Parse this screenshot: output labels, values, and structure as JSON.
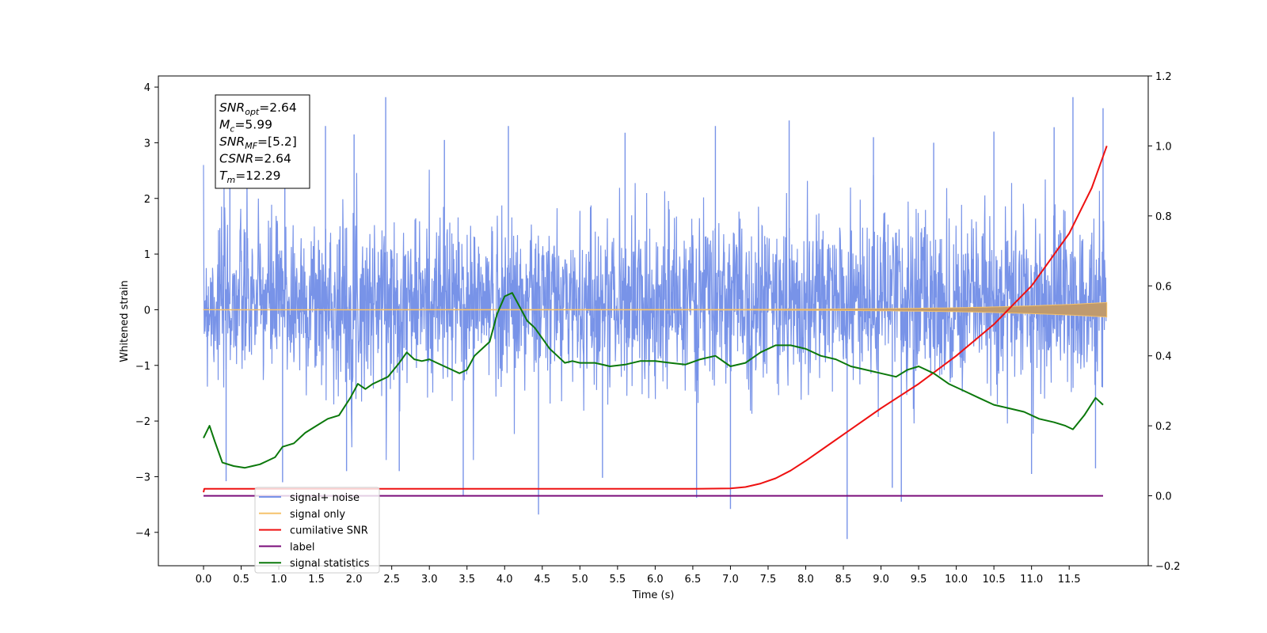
{
  "chart_data": {
    "type": "line",
    "title": "",
    "xlabel": "Time (s)",
    "ylabel": "Whitened strain",
    "x_ticks": [
      "0.0",
      "0.5",
      "1.0",
      "1.5",
      "2.0",
      "2.5",
      "3.0",
      "3.5",
      "4.0",
      "4.5",
      "5.0",
      "5.5",
      "6.0",
      "6.5",
      "7.0",
      "7.5",
      "8.0",
      "8.5",
      "9.0",
      "9.5",
      "10.0",
      "10.5",
      "11.0",
      "11.5"
    ],
    "xlim": [
      -0.6,
      12.55
    ],
    "ylim": [
      -4.6,
      4.2
    ],
    "y_ticks": [
      "4",
      "3",
      "2",
      "1",
      "0",
      "−1",
      "−2",
      "−3",
      "−4"
    ],
    "y2lim": [
      -0.2,
      1.2
    ],
    "y2_ticks": [
      "1.2",
      "1.0",
      "0.8",
      "0.6",
      "0.4",
      "0.2",
      "0.0",
      "−0.2"
    ],
    "grid": false,
    "legend_position": "lower-left",
    "colors": {
      "noise": "#7893e8",
      "signal": "#f5c26b",
      "signal_envelope": "#bf9a6e",
      "csnr": "#ee1111",
      "label": "#7b0f7b",
      "stats": "#0b780b"
    },
    "annotation": [
      {
        "base": "SNR",
        "sub": "opt",
        "value": "=2.64"
      },
      {
        "base": "M",
        "sub": "c",
        "value": "=5.99"
      },
      {
        "base": "SNR",
        "sub": "MF",
        "value": "=[5.2]"
      },
      {
        "base": "CSNR",
        "sub": "",
        "value": "=2.64"
      },
      {
        "base": "T",
        "sub": "m",
        "value": "=12.29"
      }
    ],
    "legend": [
      {
        "key": "noise",
        "label": "signal+ noise"
      },
      {
        "key": "signal",
        "label": "signal only"
      },
      {
        "key": "csnr",
        "label": "cumilative SNR"
      },
      {
        "key": "label",
        "label": "label"
      },
      {
        "key": "stats",
        "label": "signal statistics"
      }
    ],
    "series": [
      {
        "name": "signal+ noise",
        "axis": "left",
        "style": "noise-band",
        "spikes": [
          {
            "x": 2.42,
            "y": 3.82
          },
          {
            "x": 11.55,
            "y": 3.82
          },
          {
            "x": 11.95,
            "y": 3.62
          },
          {
            "x": 1.08,
            "y": 3.55
          },
          {
            "x": 1.62,
            "y": 3.3
          },
          {
            "x": 4.05,
            "y": 3.3
          },
          {
            "x": 6.8,
            "y": 3.3
          },
          {
            "x": 7.78,
            "y": 3.4
          },
          {
            "x": 2.0,
            "y": 3.15
          },
          {
            "x": 10.5,
            "y": 3.2
          },
          {
            "x": 11.3,
            "y": 3.28
          },
          {
            "x": 0.35,
            "y": 2.95
          },
          {
            "x": 3.2,
            "y": 3.05
          },
          {
            "x": 5.6,
            "y": 3.18
          },
          {
            "x": 8.9,
            "y": 3.1
          },
          {
            "x": 9.7,
            "y": 3.0
          },
          {
            "x": 4.45,
            "y": -3.68
          },
          {
            "x": 8.55,
            "y": -4.12
          },
          {
            "x": 7.0,
            "y": -3.58
          },
          {
            "x": 9.27,
            "y": -3.45
          },
          {
            "x": 6.55,
            "y": -3.38
          },
          {
            "x": 3.45,
            "y": -3.35
          },
          {
            "x": 0.3,
            "y": -3.08
          },
          {
            "x": 1.05,
            "y": -3.1
          },
          {
            "x": 2.6,
            "y": -2.9
          },
          {
            "x": 5.3,
            "y": -3.02
          },
          {
            "x": 11.0,
            "y": -2.95
          },
          {
            "x": 11.85,
            "y": -2.85
          },
          {
            "x": 9.15,
            "y": -3.2
          },
          {
            "x": 1.9,
            "y": -2.9
          }
        ]
      },
      {
        "name": "signal only",
        "axis": "left",
        "style": "chirp",
        "x": [
          0.0,
          7.0,
          8.0,
          9.0,
          10.0,
          10.5,
          11.0,
          11.5,
          12.0
        ],
        "y_amp": [
          0.003,
          0.006,
          0.01,
          0.018,
          0.035,
          0.05,
          0.07,
          0.095,
          0.13
        ]
      },
      {
        "name": "cumilative SNR",
        "axis": "right",
        "style": "line",
        "x": [
          0.0,
          0.01,
          6.5,
          7.0,
          7.2,
          7.4,
          7.6,
          7.8,
          8.0,
          8.3,
          8.6,
          9.0,
          9.5,
          10.0,
          10.5,
          11.0,
          11.5,
          11.8,
          12.0
        ],
        "y": [
          0.01,
          0.02,
          0.02,
          0.021,
          0.025,
          0.035,
          0.05,
          0.072,
          0.1,
          0.145,
          0.19,
          0.25,
          0.32,
          0.4,
          0.49,
          0.6,
          0.75,
          0.88,
          1.0
        ]
      },
      {
        "name": "label",
        "axis": "right",
        "style": "line",
        "x": [
          0.0,
          11.95
        ],
        "y": [
          0.0,
          0.0
        ]
      },
      {
        "name": "signal statistics",
        "axis": "right",
        "style": "line",
        "x": [
          0.0,
          0.08,
          0.15,
          0.25,
          0.4,
          0.55,
          0.65,
          0.75,
          0.85,
          0.95,
          1.05,
          1.2,
          1.35,
          1.5,
          1.65,
          1.8,
          1.95,
          2.05,
          2.15,
          2.25,
          2.35,
          2.45,
          2.6,
          2.7,
          2.8,
          2.9,
          3.0,
          3.1,
          3.2,
          3.3,
          3.4,
          3.5,
          3.6,
          3.7,
          3.8,
          3.9,
          4.0,
          4.1,
          4.2,
          4.3,
          4.4,
          4.5,
          4.6,
          4.7,
          4.8,
          4.9,
          5.0,
          5.2,
          5.4,
          5.6,
          5.8,
          6.0,
          6.2,
          6.4,
          6.6,
          6.8,
          7.0,
          7.2,
          7.4,
          7.6,
          7.8,
          8.0,
          8.2,
          8.4,
          8.6,
          8.8,
          9.0,
          9.2,
          9.35,
          9.5,
          9.7,
          9.9,
          10.1,
          10.3,
          10.5,
          10.7,
          10.9,
          11.1,
          11.3,
          11.45,
          11.55,
          11.7,
          11.85,
          11.95
        ],
        "y": [
          0.165,
          0.2,
          0.155,
          0.095,
          0.085,
          0.08,
          0.085,
          0.09,
          0.1,
          0.11,
          0.14,
          0.15,
          0.18,
          0.2,
          0.22,
          0.23,
          0.28,
          0.32,
          0.305,
          0.32,
          0.33,
          0.34,
          0.38,
          0.41,
          0.39,
          0.385,
          0.39,
          0.38,
          0.37,
          0.36,
          0.35,
          0.36,
          0.4,
          0.42,
          0.44,
          0.52,
          0.57,
          0.58,
          0.54,
          0.5,
          0.48,
          0.45,
          0.42,
          0.4,
          0.38,
          0.385,
          0.38,
          0.38,
          0.37,
          0.375,
          0.385,
          0.385,
          0.38,
          0.375,
          0.39,
          0.4,
          0.37,
          0.38,
          0.41,
          0.43,
          0.43,
          0.42,
          0.4,
          0.39,
          0.37,
          0.36,
          0.35,
          0.34,
          0.36,
          0.37,
          0.35,
          0.32,
          0.3,
          0.28,
          0.26,
          0.25,
          0.24,
          0.22,
          0.21,
          0.2,
          0.19,
          0.23,
          0.28,
          0.26
        ]
      }
    ]
  }
}
